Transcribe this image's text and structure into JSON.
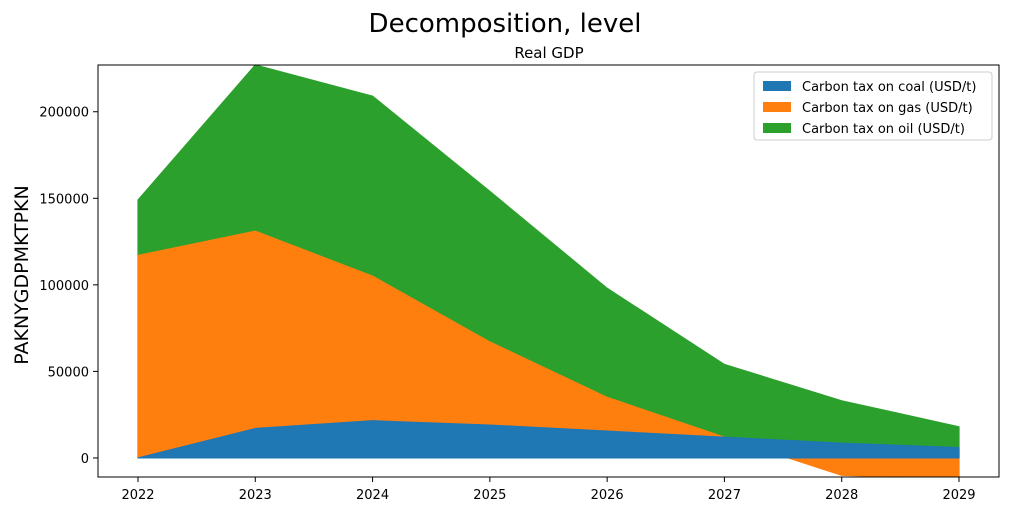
{
  "figure": {
    "suptitle": "Decomposition, level"
  },
  "chart_data": {
    "type": "area",
    "title": "Real GDP",
    "xlabel": "",
    "ylabel": "PAKNYGDPMKTPKN",
    "x": [
      "2022",
      "2023",
      "2024",
      "2025",
      "2026",
      "2027",
      "2028",
      "2029"
    ],
    "ylim": [
      -11000,
      227000
    ],
    "yticks": [
      0,
      50000,
      100000,
      150000,
      200000
    ],
    "ytick_labels": [
      "0",
      "50000",
      "100000",
      "150000",
      "200000"
    ],
    "grid": false,
    "legend_position": "top-right",
    "series": [
      {
        "name": "Carbon tax on coal (USD/t)",
        "color": "#1f77b4",
        "values": [
          0,
          17000,
          21500,
          19000,
          15500,
          12000,
          8500,
          6000
        ]
      },
      {
        "name": "Carbon tax on gas (USD/t)",
        "color": "#ff7f0e",
        "values": [
          117000,
          131000,
          105000,
          67000,
          35000,
          12000,
          -10000,
          -12000
        ]
      },
      {
        "name": "Carbon tax on oil (USD/t)",
        "color": "#2ca02c",
        "values": [
          149000,
          227000,
          209000,
          154000,
          98000,
          54000,
          33000,
          18000
        ]
      }
    ]
  }
}
